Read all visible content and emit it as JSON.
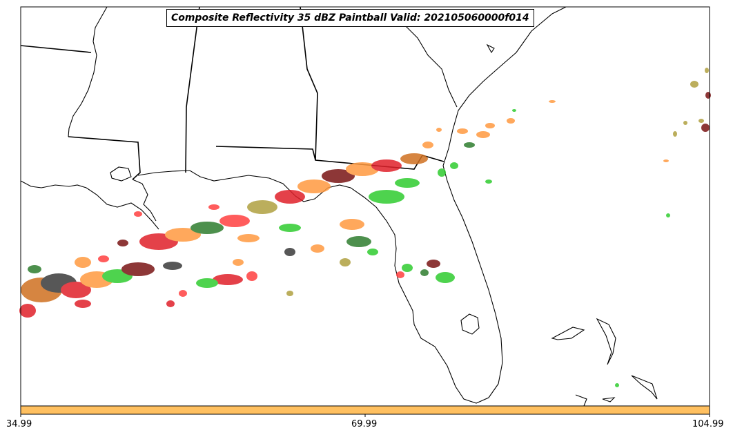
{
  "title": "Composite Reflectivity 35 dBZ Paintball Valid: 202105060000f014",
  "colorbar": {
    "color": "#ffc060",
    "ticks": [
      "34.99",
      "69.99",
      "104.99"
    ]
  },
  "colors": {
    "ensemble": [
      "#3a3a3a",
      "#b0a040",
      "#ff9a40",
      "#e0202a",
      "#30cc30",
      "#7a1515",
      "#2e7d2e",
      "#ff4040",
      "#d07020"
    ]
  }
}
